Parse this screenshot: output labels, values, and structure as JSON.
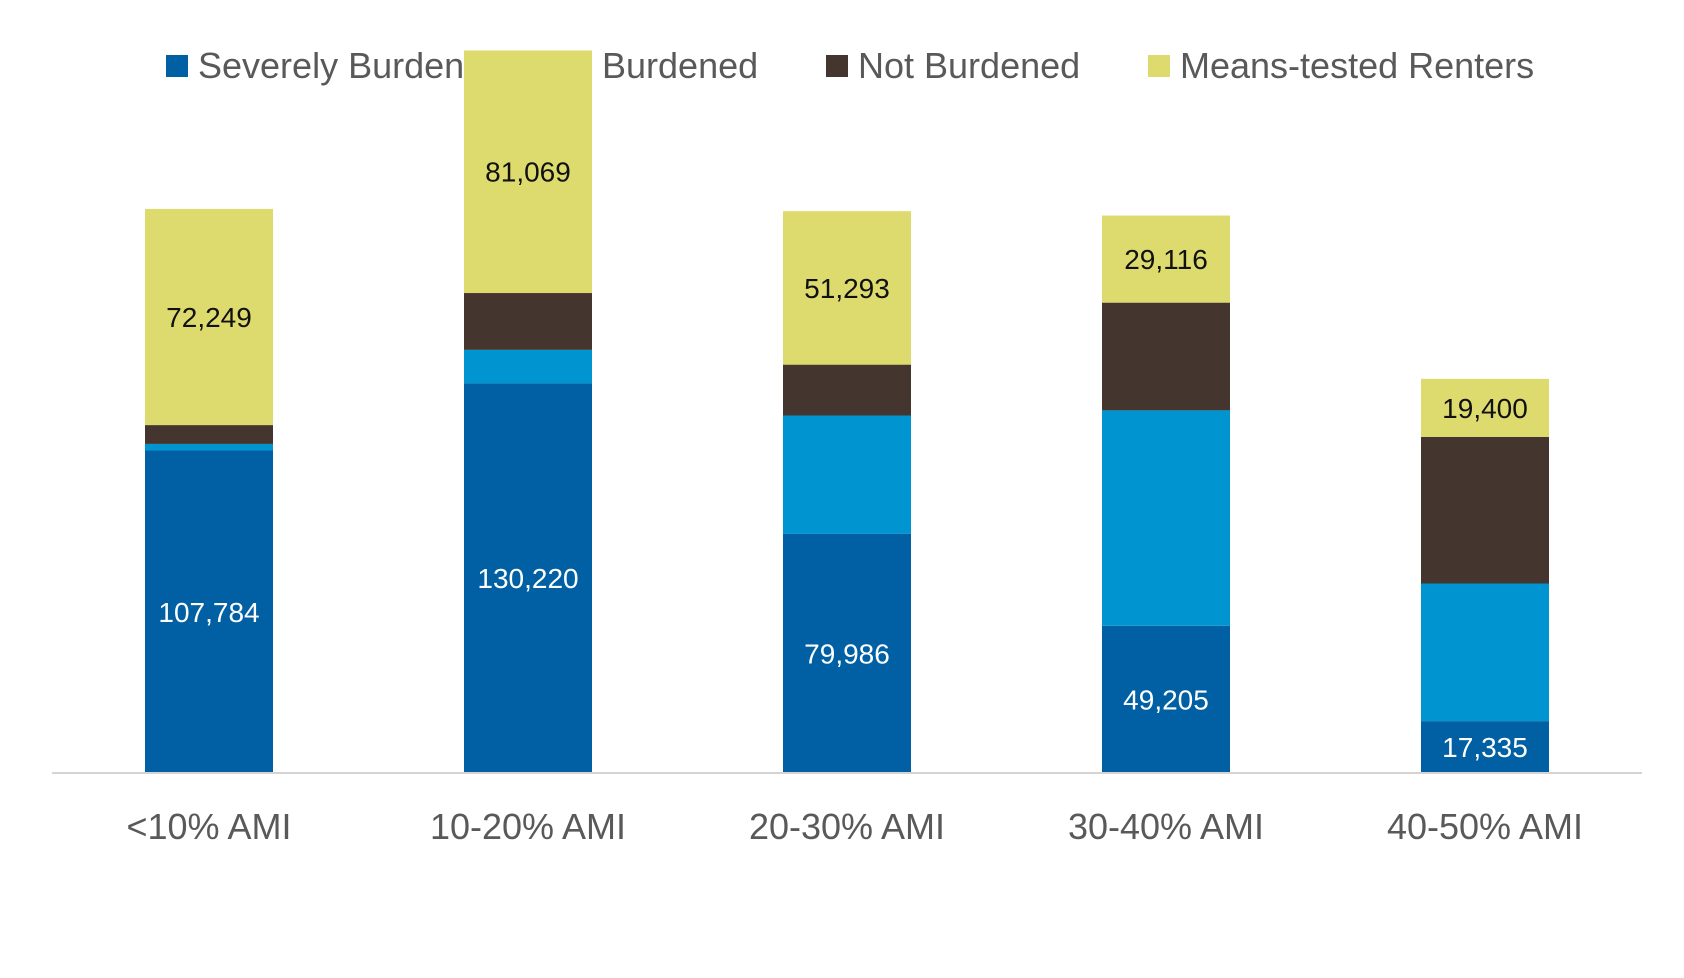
{
  "chart_data": {
    "type": "bar",
    "stacked": true,
    "title": "",
    "xlabel": "",
    "ylabel": "",
    "ylim": [
      0,
      250000
    ],
    "grid": false,
    "legend_position": "top",
    "categories": [
      "<10% AMI",
      "10-20% AMI",
      "20-30% AMI",
      "30-40% AMI",
      "40-50% AMI"
    ],
    "series": [
      {
        "name": "Severely Burdened",
        "color": "#0060A3",
        "values": [
          107784,
          130220,
          79986,
          49205,
          17335
        ],
        "labels": [
          "107,784",
          "130,220",
          "79,986",
          "49,205",
          "17,335"
        ],
        "label_color": "#ffffff"
      },
      {
        "name": "Burdened",
        "color": "#0094D1",
        "values": [
          2200,
          11200,
          39500,
          72000,
          46000
        ],
        "labels": [
          null,
          null,
          null,
          null,
          null
        ],
        "label_color": "#ffffff"
      },
      {
        "name": "Not Burdened",
        "color": "#44362F",
        "values": [
          6300,
          19000,
          17000,
          36000,
          49000
        ],
        "labels": [
          null,
          null,
          null,
          null,
          null
        ],
        "label_color": "#ffffff"
      },
      {
        "name": "Means-tested Renters",
        "color": "#DDDB6E",
        "values": [
          72249,
          81069,
          51293,
          29116,
          19400
        ],
        "labels": [
          "72,249",
          "81,069",
          "51,293",
          "29,116",
          "19,400"
        ],
        "label_color": "#111111"
      }
    ]
  }
}
